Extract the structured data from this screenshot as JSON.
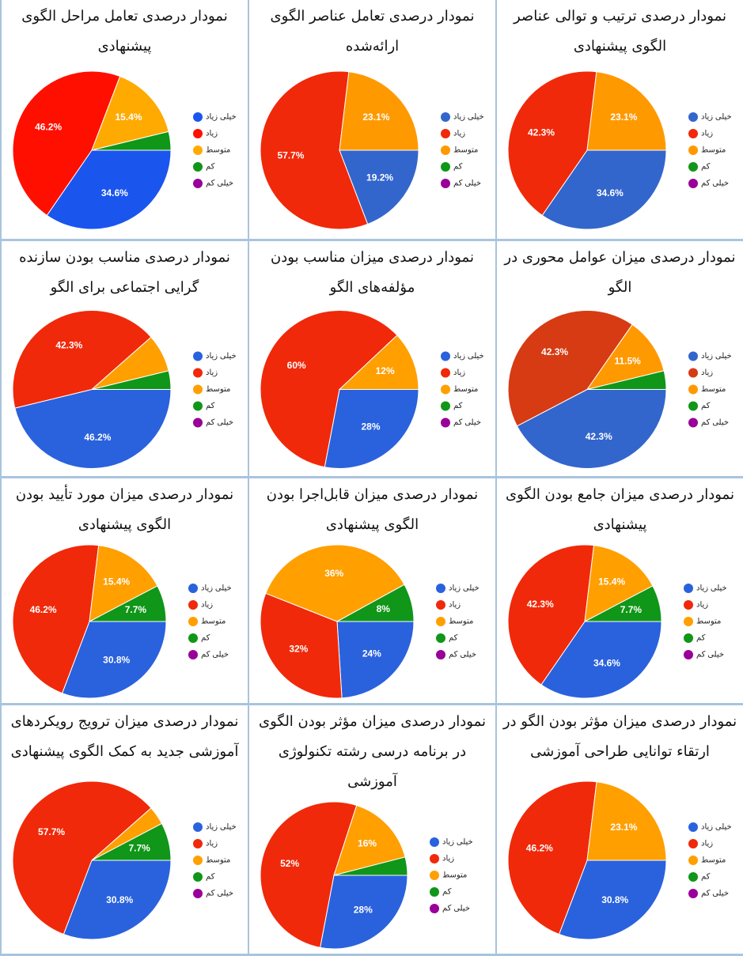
{
  "chart_data": [
    {
      "type": "pie",
      "title": "نمودار درصدی ترتیب و توالی عناصر الگوی پیشنهادی",
      "categories": [
        "خیلی زیاد",
        "زیاد",
        "متوسط",
        "کم",
        "خیلی کم"
      ],
      "values": [
        34.6,
        42.3,
        23.1,
        0,
        0
      ],
      "value_labels": [
        "34.6%",
        "42.3%",
        "23.1%",
        null,
        null
      ],
      "colors": [
        "#3366cc",
        "#f0290a",
        "#ff9900",
        "#109618",
        "#990099"
      ]
    },
    {
      "type": "pie",
      "title": "نمودار درصدی تعامل عناصر الگوی ارائه‌شده",
      "categories": [
        "خیلی زیاد",
        "زیاد",
        "متوسط",
        "کم",
        "خیلی کم"
      ],
      "values": [
        19.2,
        57.7,
        23.1,
        0,
        0
      ],
      "value_labels": [
        "19.2%",
        "57.7%",
        "23.1%",
        null,
        null
      ],
      "colors": [
        "#3366cc",
        "#f0290a",
        "#ff9900",
        "#109618",
        "#990099"
      ]
    },
    {
      "type": "pie",
      "title": "نمودار درصدی تعامل مراحل الگوی پیشنهادی",
      "categories": [
        "خیلی زیاد",
        "زیاد",
        "متوسط",
        "کم",
        "خیلی کم"
      ],
      "values": [
        34.6,
        46.2,
        15.4,
        3.8,
        0
      ],
      "value_labels": [
        "34.6%",
        "46.2%",
        "15.4%",
        null,
        null
      ],
      "colors": [
        "#1a55ee",
        "#ff0f00",
        "#ffaa00",
        "#109618",
        "#990099"
      ]
    },
    {
      "type": "pie",
      "title": "نمودار درصدی میزان عوامل محوری در الگو",
      "categories": [
        "خیلی زیاد",
        "زیاد",
        "متوسط",
        "کم",
        "خیلی کم"
      ],
      "values": [
        42.3,
        42.3,
        11.5,
        3.8,
        0
      ],
      "value_labels": [
        "42.3%",
        "42.3%",
        "11.5%",
        null,
        null
      ],
      "colors": [
        "#3366cc",
        "#d63b14",
        "#ff9900",
        "#109618",
        "#990099"
      ]
    },
    {
      "type": "pie",
      "title": "نمودار درصدی میزان مناسب بودن مؤلفه‌های الگو",
      "categories": [
        "خیلی زیاد",
        "زیاد",
        "متوسط",
        "کم",
        "خیلی کم"
      ],
      "values": [
        28,
        60,
        12,
        0,
        0
      ],
      "value_labels": [
        "28%",
        "60%",
        "12%",
        null,
        null
      ],
      "colors": [
        "#2a62dd",
        "#f0290a",
        "#ff9f00",
        "#109618",
        "#990099"
      ]
    },
    {
      "type": "pie",
      "title": "نمودار درصدی مناسب بودن سازنده گرایی اجتماعی برای الگو",
      "categories": [
        "خیلی زیاد",
        "زیاد",
        "متوسط",
        "کم",
        "خیلی کم"
      ],
      "values": [
        46.2,
        42.3,
        7.7,
        3.8,
        0
      ],
      "value_labels": [
        "46.2%",
        "42.3%",
        null,
        null,
        null
      ],
      "colors": [
        "#2a62dd",
        "#f0290a",
        "#ff9f00",
        "#109618",
        "#990099"
      ]
    },
    {
      "type": "pie",
      "title": "نمودار درصدی میزان جامع بودن الگوی پیشنهادی",
      "categories": [
        "خیلی زیاد",
        "زیاد",
        "متوسط",
        "کم",
        "خیلی کم"
      ],
      "values": [
        34.6,
        42.3,
        15.4,
        7.7,
        0
      ],
      "value_labels": [
        "34.6%",
        "42.3%",
        "15.4%",
        "7.7%",
        null
      ],
      "colors": [
        "#2a62dd",
        "#f0290a",
        "#ff9f00",
        "#109618",
        "#990099"
      ]
    },
    {
      "type": "pie",
      "title": "نمودار درصدی میزان قابل‌اجرا بودن الگوی پیشنهادی",
      "categories": [
        "خیلی زیاد",
        "زیاد",
        "متوسط",
        "کم",
        "خیلی کم"
      ],
      "values": [
        24,
        32,
        36,
        8,
        0
      ],
      "value_labels": [
        "24%",
        "32%",
        "36%",
        "8%",
        null
      ],
      "colors": [
        "#2a62dd",
        "#f0290a",
        "#ff9f00",
        "#109618",
        "#990099"
      ]
    },
    {
      "type": "pie",
      "title": "نمودار درصدی میزان مورد تأیید بودن الگوی پیشنهادی",
      "categories": [
        "خیلی زیاد",
        "زیاد",
        "متوسط",
        "کم",
        "خیلی کم"
      ],
      "values": [
        30.8,
        46.2,
        15.4,
        7.7,
        0
      ],
      "value_labels": [
        "30.8%",
        "46.2%",
        "15.4%",
        "7.7%",
        null
      ],
      "colors": [
        "#2a62dd",
        "#f0290a",
        "#ff9f00",
        "#109618",
        "#990099"
      ]
    },
    {
      "type": "pie",
      "title": "نمودار درصدی میزان مؤثر بودن الگو در ارتقاء توانایی طراحی آموزشی",
      "categories": [
        "خیلی زیاد",
        "زیاد",
        "متوسط",
        "کم",
        "خیلی کم"
      ],
      "values": [
        30.8,
        46.2,
        23.1,
        0,
        0
      ],
      "value_labels": [
        "30.8%",
        "46.2%",
        "23.1%",
        null,
        null
      ],
      "colors": [
        "#2a62dd",
        "#f0290a",
        "#ff9f00",
        "#109618",
        "#990099"
      ]
    },
    {
      "type": "pie",
      "title": "نمودار درصدی میزان مؤثر بودن الگوی در برنامه درسی رشته تکنولوژی آموزشی",
      "categories": [
        "خیلی زیاد",
        "زیاد",
        "متوسط",
        "کم",
        "خیلی کم"
      ],
      "values": [
        28,
        52,
        16,
        4,
        0
      ],
      "value_labels": [
        "28%",
        "52%",
        "16%",
        null,
        null
      ],
      "colors": [
        "#2a62dd",
        "#f0290a",
        "#ff9f00",
        "#109618",
        "#990099"
      ]
    },
    {
      "type": "pie",
      "title": "نمودار درصدی میزان ترویج رویکردهای آموزشی جدید به کمک الگوی پیشنهادی",
      "categories": [
        "خیلی زیاد",
        "زیاد",
        "متوسط",
        "کم",
        "خیلی کم"
      ],
      "values": [
        30.8,
        57.7,
        3.8,
        7.7,
        0
      ],
      "value_labels": [
        "30.8%",
        "57.7%",
        null,
        "7.7%",
        null
      ],
      "colors": [
        "#2a62dd",
        "#f0290a",
        "#ff9f00",
        "#109618",
        "#990099"
      ]
    }
  ]
}
